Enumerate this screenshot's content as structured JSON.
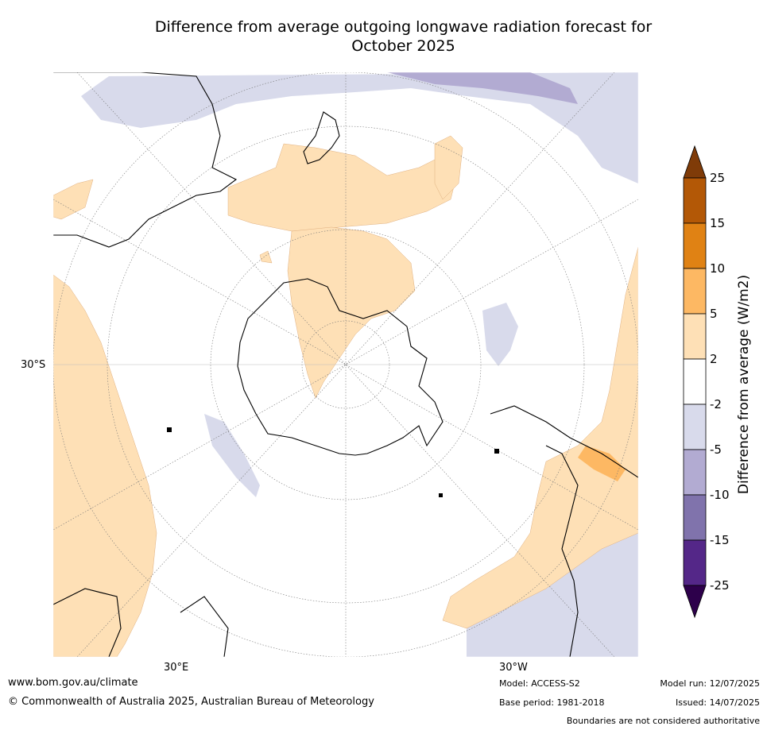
{
  "title": {
    "line1": "Difference from average outgoing longwave radiation forecast for",
    "line2": "October 2025"
  },
  "map": {
    "projection": "south-polar-stereographic",
    "lat_label": "30°S",
    "lon_labels": [
      "30°E",
      "30°W"
    ]
  },
  "colorbar": {
    "label": "Difference from average (W/m2)",
    "ticks": [
      "25",
      "15",
      "10",
      "5",
      "2",
      "-2",
      "-5",
      "-10",
      "-15",
      "-25"
    ],
    "bins": [
      {
        "range": ">25",
        "color": "#7f3b08"
      },
      {
        "range": "15 to 25",
        "color": "#b35806"
      },
      {
        "range": "10 to 15",
        "color": "#e08214"
      },
      {
        "range": "5 to 10",
        "color": "#fdb863"
      },
      {
        "range": "2 to 5",
        "color": "#fee0b6"
      },
      {
        "range": "-2 to 2",
        "color": "#ffffff"
      },
      {
        "range": "-5 to -2",
        "color": "#d8daeb"
      },
      {
        "range": "-10 to -5",
        "color": "#b2abd2"
      },
      {
        "range": "-15 to -10",
        "color": "#8073ac"
      },
      {
        "range": "-25 to -15",
        "color": "#542788"
      },
      {
        "range": "<-25",
        "color": "#2d004b"
      }
    ]
  },
  "footer": {
    "url": "www.bom.gov.au/climate",
    "copyright": "© Commonwealth of Australia 2025, Australian Bureau of Meteorology",
    "model": "Model: ACCESS-S2",
    "base_period": "Base period: 1981-2018",
    "model_run": "Model run: 12/07/2025",
    "issued": "Issued: 14/07/2025",
    "disclaimer": "Boundaries are not considered authoritative"
  }
}
